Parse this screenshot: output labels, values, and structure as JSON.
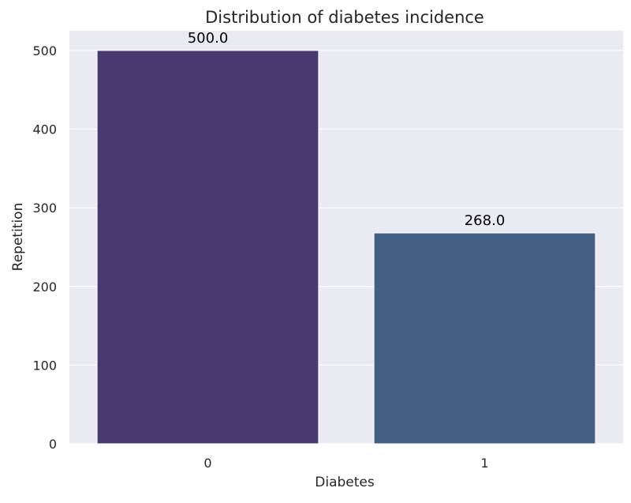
{
  "chart_data": {
    "type": "bar",
    "title": "Distribution of diabetes incidence",
    "xlabel": "Diabetes",
    "ylabel": "Repetition",
    "categories": [
      "0",
      "1"
    ],
    "values": [
      500,
      268
    ],
    "data_labels": [
      "500.0",
      "268.0"
    ],
    "colors": [
      "#483a70",
      "#425e82"
    ],
    "ylim": [
      0,
      525
    ],
    "yticks": [
      0,
      100,
      200,
      300,
      400,
      500
    ],
    "grid": true,
    "background": "#eaeaf2"
  }
}
